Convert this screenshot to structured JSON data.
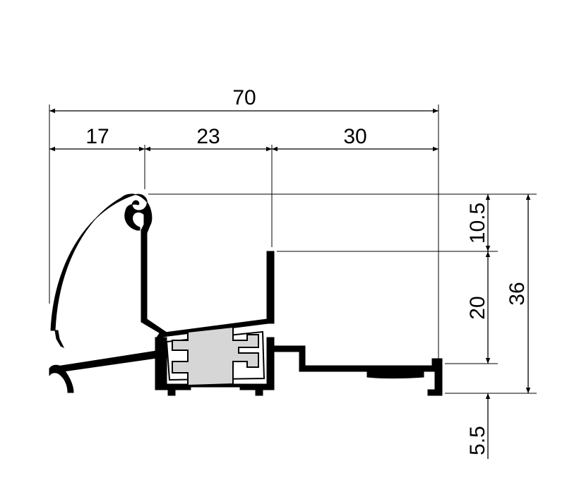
{
  "dimensions": {
    "overall_width": "70",
    "segment_1": "17",
    "segment_2": "23",
    "segment_3": "30",
    "height_top": "10.5",
    "height_middle": "20",
    "height_overall": "36",
    "height_bottom": "5.5"
  },
  "colors": {
    "line": "#000000",
    "insulator_fill": "#d6d6d6",
    "background": "#ffffff"
  }
}
